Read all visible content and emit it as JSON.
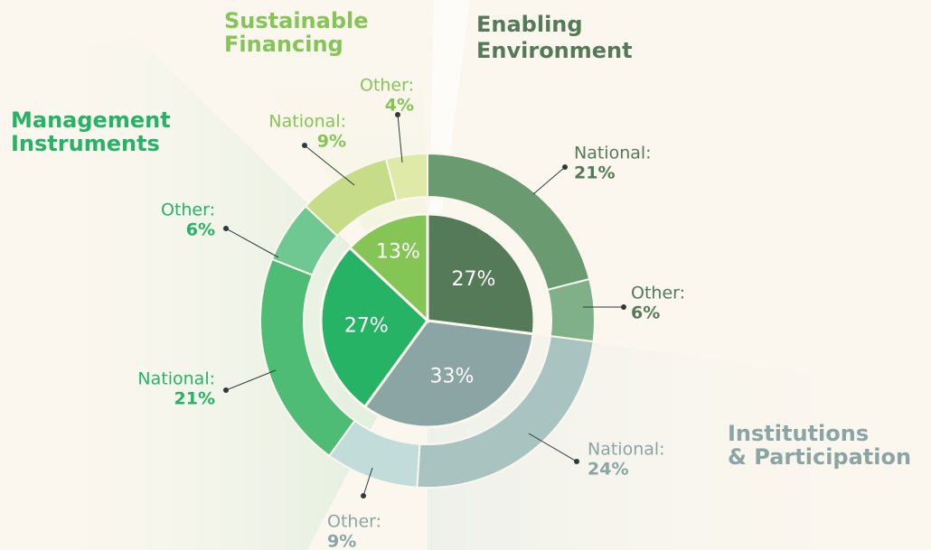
{
  "chart_data": {
    "type": "pie",
    "series": [
      {
        "name_lines": [
          "Enabling",
          "Environment"
        ],
        "value": 27,
        "value_label": "27%",
        "color": "#557a58",
        "parts": [
          {
            "name": "National:",
            "value": 21,
            "value_label": "21%",
            "color": "#6a9a70"
          },
          {
            "name": "Other:",
            "value": 6,
            "value_label": "6%",
            "color": "#80b088"
          }
        ]
      },
      {
        "name_lines": [
          "Institutions",
          "& Participation"
        ],
        "value": 33,
        "value_label": "33%",
        "color": "#8aa5a3",
        "parts": [
          {
            "name": "National:",
            "value": 24,
            "value_label": "24%",
            "color": "#a8c3c0"
          },
          {
            "name": "Other:",
            "value": 9,
            "value_label": "9%",
            "color": "#c2dcda"
          }
        ]
      },
      {
        "name_lines": [
          "Management",
          "Instruments"
        ],
        "value": 27,
        "value_label": "27%",
        "color": "#27b366",
        "parts": [
          {
            "name": "National:",
            "value": 21,
            "value_label": "21%",
            "color": "#4ebc74"
          },
          {
            "name": "Other:",
            "value": 6,
            "value_label": "6%",
            "color": "#6fc792"
          }
        ]
      },
      {
        "name_lines": [
          "Sustainable",
          "Financing"
        ],
        "value": 13,
        "value_label": "13%",
        "color": "#85c556",
        "parts": [
          {
            "name": "National:",
            "value": 9,
            "value_label": "9%",
            "color": "#c6dc88"
          },
          {
            "name": "Other:",
            "value": 4,
            "value_label": "4%",
            "color": "#dfeaa9"
          }
        ]
      }
    ]
  }
}
